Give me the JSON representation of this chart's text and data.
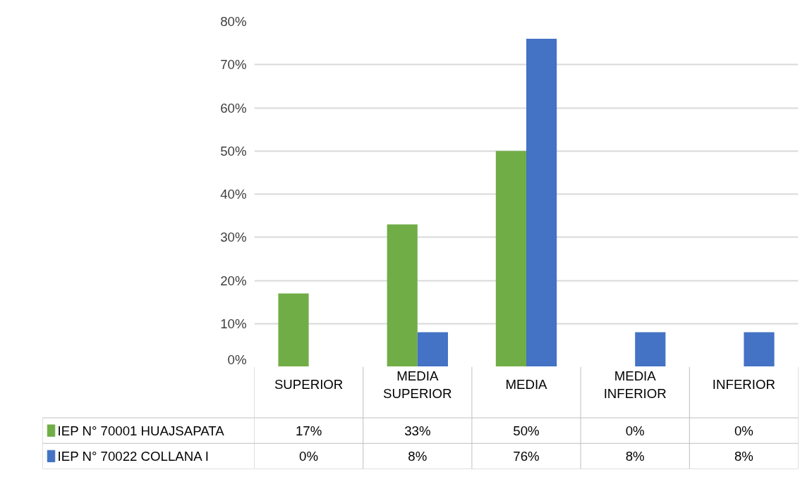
{
  "chart_data": {
    "type": "bar",
    "categories": [
      "SUPERIOR",
      "MEDIA SUPERIOR",
      "MEDIA",
      "MEDIA INFERIOR",
      "INFERIOR"
    ],
    "series": [
      {
        "name": "IEP N° 70001 HUAJSAPATA",
        "color": "#70ad47",
        "values": [
          17,
          33,
          50,
          0,
          0
        ],
        "value_labels": [
          "17%",
          "33%",
          "50%",
          "0%",
          "0%"
        ]
      },
      {
        "name": "IEP N° 70022 COLLANA I",
        "color": "#4472c4",
        "values": [
          0,
          8,
          76,
          8,
          8
        ],
        "value_labels": [
          "0%",
          "8%",
          "76%",
          "8%",
          "8%"
        ]
      }
    ],
    "ylim": [
      0,
      80
    ],
    "yticks": [
      {
        "value": 0,
        "label": "0%"
      },
      {
        "value": 10,
        "label": "10%"
      },
      {
        "value": 20,
        "label": "20%"
      },
      {
        "value": 30,
        "label": "30%"
      },
      {
        "value": 40,
        "label": "40%"
      },
      {
        "value": 50,
        "label": "50%"
      },
      {
        "value": 60,
        "label": "60%"
      },
      {
        "value": 70,
        "label": "70%"
      },
      {
        "value": 80,
        "label": "80%"
      }
    ],
    "grid": "y",
    "legend": "bottom",
    "data_labels": true
  }
}
